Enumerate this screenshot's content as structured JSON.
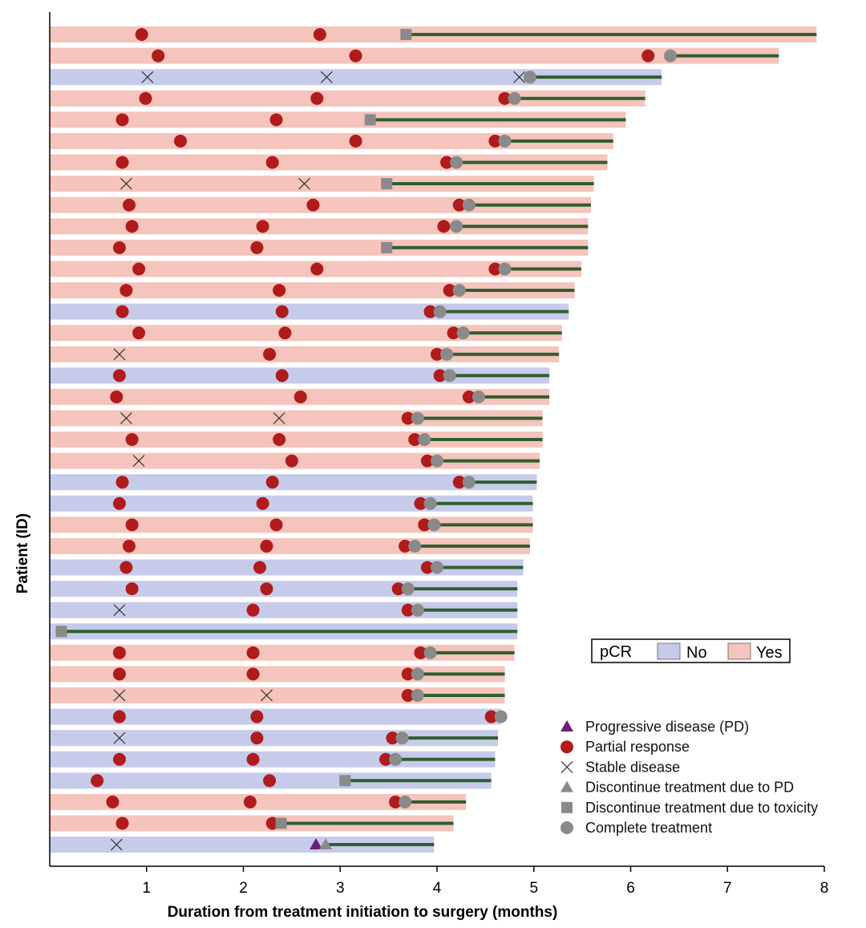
{
  "chart_data": {
    "type": "swimmer",
    "xlabel": "Duration from treatment initiation to surgery (months)",
    "ylabel": "Patient (ID)",
    "xlim": [
      0,
      8
    ],
    "xticks": [
      1,
      2,
      3,
      4,
      5,
      6,
      7,
      8
    ],
    "grid": false,
    "colors": {
      "No": "#c7cbea",
      "Yes": "#f5c4bc",
      "PR": "#b01b1b",
      "gray": "#8a8a8a",
      "PD": "#6a1f78",
      "line": "#2f5f2f"
    },
    "pcr_legend": {
      "title": "pCR",
      "entries": [
        "No",
        "Yes"
      ],
      "placement": "right-middle"
    },
    "marker_legend": {
      "placement": "bottom-right",
      "entries": [
        {
          "type": "PD",
          "label": "Progressive disease (PD)"
        },
        {
          "type": "PR",
          "label": "Partial response"
        },
        {
          "type": "SD",
          "label": "Stable disease"
        },
        {
          "type": "DPD",
          "label": "Discontinue treatment due to PD"
        },
        {
          "type": "DTOX",
          "label": "Discontinue treatment due to toxicity"
        },
        {
          "type": "CT",
          "label": "Complete treatment"
        }
      ]
    },
    "patients": [
      {
        "pcr": "Yes",
        "end": 7.92,
        "events": [
          [
            "PR",
            0.95
          ],
          [
            "PR",
            2.79
          ],
          [
            "DTOX",
            3.68
          ]
        ]
      },
      {
        "pcr": "Yes",
        "end": 7.53,
        "events": [
          [
            "PR",
            1.12
          ],
          [
            "PR",
            3.16
          ],
          [
            "PR",
            6.18
          ],
          [
            "CT",
            6.41
          ]
        ]
      },
      {
        "pcr": "No",
        "end": 6.32,
        "events": [
          [
            "SD",
            1.01
          ],
          [
            "SD",
            2.86
          ],
          [
            "SD",
            4.85
          ],
          [
            "CT",
            4.96
          ]
        ]
      },
      {
        "pcr": "Yes",
        "end": 6.15,
        "events": [
          [
            "PR",
            0.99
          ],
          [
            "PR",
            2.76
          ],
          [
            "PR",
            4.7
          ],
          [
            "CT",
            4.8
          ]
        ]
      },
      {
        "pcr": "Yes",
        "end": 5.95,
        "events": [
          [
            "PR",
            0.75
          ],
          [
            "PR",
            2.34
          ],
          [
            "DTOX",
            3.31
          ]
        ]
      },
      {
        "pcr": "Yes",
        "end": 5.82,
        "events": [
          [
            "PR",
            1.35
          ],
          [
            "PR",
            3.16
          ],
          [
            "PR",
            4.6
          ],
          [
            "CT",
            4.7
          ]
        ]
      },
      {
        "pcr": "Yes",
        "end": 5.76,
        "events": [
          [
            "PR",
            0.75
          ],
          [
            "PR",
            2.3
          ],
          [
            "PR",
            4.1
          ],
          [
            "CT",
            4.2
          ]
        ]
      },
      {
        "pcr": "Yes",
        "end": 5.62,
        "events": [
          [
            "SD",
            0.79
          ],
          [
            "SD",
            2.63
          ],
          [
            "DTOX",
            3.48
          ]
        ]
      },
      {
        "pcr": "Yes",
        "end": 5.59,
        "events": [
          [
            "PR",
            0.82
          ],
          [
            "PR",
            2.72
          ],
          [
            "PR",
            4.23
          ],
          [
            "CT",
            4.33
          ]
        ]
      },
      {
        "pcr": "Yes",
        "end": 5.56,
        "events": [
          [
            "PR",
            0.85
          ],
          [
            "PR",
            2.2
          ],
          [
            "PR",
            4.07
          ],
          [
            "CT",
            4.2
          ]
        ]
      },
      {
        "pcr": "Yes",
        "end": 5.56,
        "events": [
          [
            "PR",
            0.72
          ],
          [
            "PR",
            2.14
          ],
          [
            "DTOX",
            3.48
          ]
        ]
      },
      {
        "pcr": "Yes",
        "end": 5.49,
        "events": [
          [
            "PR",
            0.92
          ],
          [
            "PR",
            2.76
          ],
          [
            "PR",
            4.6
          ],
          [
            "CT",
            4.7
          ]
        ]
      },
      {
        "pcr": "Yes",
        "end": 5.42,
        "events": [
          [
            "PR",
            0.79
          ],
          [
            "PR",
            2.37
          ],
          [
            "PR",
            4.13
          ],
          [
            "CT",
            4.23
          ]
        ]
      },
      {
        "pcr": "No",
        "end": 5.36,
        "events": [
          [
            "PR",
            0.75
          ],
          [
            "PR",
            2.4
          ],
          [
            "PR",
            3.93
          ],
          [
            "CT",
            4.03
          ]
        ]
      },
      {
        "pcr": "Yes",
        "end": 5.29,
        "events": [
          [
            "PR",
            0.92
          ],
          [
            "PR",
            2.43
          ],
          [
            "PR",
            4.17
          ],
          [
            "CT",
            4.27
          ]
        ]
      },
      {
        "pcr": "Yes",
        "end": 5.26,
        "events": [
          [
            "SD",
            0.72
          ],
          [
            "PR",
            2.27
          ],
          [
            "PR",
            4.0
          ],
          [
            "CT",
            4.1
          ]
        ]
      },
      {
        "pcr": "No",
        "end": 5.16,
        "events": [
          [
            "PR",
            0.72
          ],
          [
            "PR",
            2.4
          ],
          [
            "PR",
            4.03
          ],
          [
            "CT",
            4.13
          ]
        ]
      },
      {
        "pcr": "Yes",
        "end": 5.16,
        "events": [
          [
            "PR",
            0.69
          ],
          [
            "PR",
            2.59
          ],
          [
            "PR",
            4.33
          ],
          [
            "CT",
            4.43
          ]
        ]
      },
      {
        "pcr": "Yes",
        "end": 5.09,
        "events": [
          [
            "SD",
            0.79
          ],
          [
            "SD",
            2.37
          ],
          [
            "PR",
            3.7
          ],
          [
            "CT",
            3.8
          ]
        ]
      },
      {
        "pcr": "Yes",
        "end": 5.09,
        "events": [
          [
            "PR",
            0.85
          ],
          [
            "PR",
            2.37
          ],
          [
            "PR",
            3.77
          ],
          [
            "CT",
            3.87
          ]
        ]
      },
      {
        "pcr": "Yes",
        "end": 5.06,
        "events": [
          [
            "SD",
            0.92
          ],
          [
            "PR",
            2.5
          ],
          [
            "PR",
            3.9
          ],
          [
            "CT",
            4.0
          ]
        ]
      },
      {
        "pcr": "No",
        "end": 5.03,
        "events": [
          [
            "PR",
            0.75
          ],
          [
            "PR",
            2.3
          ],
          [
            "PR",
            4.23
          ],
          [
            "CT",
            4.33
          ]
        ]
      },
      {
        "pcr": "No",
        "end": 4.99,
        "events": [
          [
            "PR",
            0.72
          ],
          [
            "PR",
            2.2
          ],
          [
            "PR",
            3.83
          ],
          [
            "CT",
            3.93
          ]
        ]
      },
      {
        "pcr": "Yes",
        "end": 4.99,
        "events": [
          [
            "PR",
            0.85
          ],
          [
            "PR",
            2.34
          ],
          [
            "PR",
            3.87
          ],
          [
            "CT",
            3.97
          ]
        ]
      },
      {
        "pcr": "Yes",
        "end": 4.96,
        "events": [
          [
            "PR",
            0.82
          ],
          [
            "PR",
            2.24
          ],
          [
            "PR",
            3.67
          ],
          [
            "CT",
            3.77
          ]
        ]
      },
      {
        "pcr": "No",
        "end": 4.89,
        "events": [
          [
            "PR",
            0.79
          ],
          [
            "PR",
            2.17
          ],
          [
            "PR",
            3.9
          ],
          [
            "CT",
            4.0
          ]
        ]
      },
      {
        "pcr": "No",
        "end": 4.83,
        "events": [
          [
            "PR",
            0.85
          ],
          [
            "PR",
            2.24
          ],
          [
            "PR",
            3.6
          ],
          [
            "CT",
            3.7
          ]
        ]
      },
      {
        "pcr": "No",
        "end": 4.83,
        "events": [
          [
            "SD",
            0.72
          ],
          [
            "PR",
            2.1
          ],
          [
            "PR",
            3.7
          ],
          [
            "CT",
            3.8
          ]
        ]
      },
      {
        "pcr": "No",
        "end": 4.83,
        "events": [
          [
            "DTOX",
            0.12
          ]
        ]
      },
      {
        "pcr": "Yes",
        "end": 4.8,
        "events": [
          [
            "PR",
            0.72
          ],
          [
            "PR",
            2.1
          ],
          [
            "PR",
            3.83
          ],
          [
            "CT",
            3.93
          ]
        ]
      },
      {
        "pcr": "Yes",
        "end": 4.7,
        "events": [
          [
            "PR",
            0.72
          ],
          [
            "PR",
            2.1
          ],
          [
            "PR",
            3.7
          ],
          [
            "CT",
            3.8
          ]
        ]
      },
      {
        "pcr": "Yes",
        "end": 4.7,
        "events": [
          [
            "SD",
            0.72
          ],
          [
            "SD",
            2.24
          ],
          [
            "PR",
            3.7
          ],
          [
            "CT",
            3.8
          ]
        ]
      },
      {
        "pcr": "No",
        "end": 4.66,
        "events": [
          [
            "PR",
            0.72
          ],
          [
            "PR",
            2.14
          ],
          [
            "PR",
            4.56
          ],
          [
            "CT",
            4.66
          ]
        ]
      },
      {
        "pcr": "No",
        "end": 4.63,
        "events": [
          [
            "SD",
            0.72
          ],
          [
            "PR",
            2.14
          ],
          [
            "PR",
            3.54
          ],
          [
            "CT",
            3.64
          ]
        ]
      },
      {
        "pcr": "No",
        "end": 4.6,
        "events": [
          [
            "PR",
            0.72
          ],
          [
            "PR",
            2.1
          ],
          [
            "PR",
            3.47
          ],
          [
            "CT",
            3.57
          ]
        ]
      },
      {
        "pcr": "No",
        "end": 4.56,
        "events": [
          [
            "PR",
            0.49
          ],
          [
            "PR",
            2.27
          ],
          [
            "DTOX",
            3.05
          ]
        ]
      },
      {
        "pcr": "Yes",
        "end": 4.3,
        "events": [
          [
            "PR",
            0.65
          ],
          [
            "PR",
            2.07
          ],
          [
            "PR",
            3.57
          ],
          [
            "CT",
            3.67
          ]
        ]
      },
      {
        "pcr": "Yes",
        "end": 4.17,
        "events": [
          [
            "PR",
            0.75
          ],
          [
            "PR",
            2.3
          ],
          [
            "DTOX",
            2.39
          ]
        ]
      },
      {
        "pcr": "No",
        "end": 3.97,
        "events": [
          [
            "SD",
            0.69
          ],
          [
            "PD",
            2.75
          ],
          [
            "DPD",
            2.85
          ]
        ]
      }
    ]
  }
}
